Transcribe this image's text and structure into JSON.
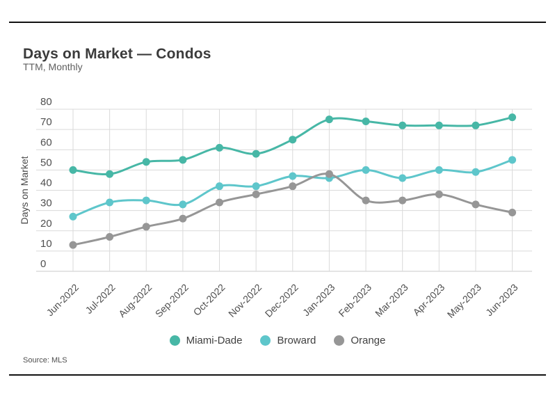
{
  "header": {
    "title": "Days on Market — Condos",
    "subtitle": "TTM, Monthly"
  },
  "footer": {
    "source": "Source: MLS"
  },
  "chart_data": {
    "type": "line",
    "title": "Days on Market — Condos",
    "subtitle": "TTM, Monthly",
    "xlabel": "",
    "ylabel": "Days on Market",
    "ylim": [
      0,
      80
    ],
    "yticks": [
      0,
      10,
      20,
      30,
      40,
      50,
      60,
      70,
      80
    ],
    "grid": true,
    "legend_position": "bottom",
    "categories": [
      "Jun-2022",
      "Jul-2022",
      "Aug-2022",
      "Sep-2022",
      "Oct-2022",
      "Nov-2022",
      "Dec-2022",
      "Jan-2023",
      "Feb-2023",
      "Mar-2023",
      "Apr-2023",
      "May-2023",
      "Jun-2023"
    ],
    "series": [
      {
        "name": "Miami-Dade",
        "color": "#47b7a6",
        "values": [
          50,
          48,
          54,
          55,
          61,
          58,
          65,
          75,
          74,
          72,
          72,
          72,
          76
        ]
      },
      {
        "name": "Broward",
        "color": "#5ec6cb",
        "values": [
          27,
          34,
          35,
          33,
          42,
          42,
          47,
          46,
          50,
          46,
          50,
          49,
          55
        ]
      },
      {
        "name": "Orange",
        "color": "#969696",
        "values": [
          13,
          17,
          22,
          26,
          34,
          38,
          42,
          48,
          35,
          35,
          38,
          33,
          29
        ]
      }
    ],
    "source": "Source: MLS",
    "colors": {
      "gridline": "#dadada",
      "baseline": "#c9c9c9",
      "tick_label": "#4f4f4f",
      "rule": "#111111"
    }
  }
}
